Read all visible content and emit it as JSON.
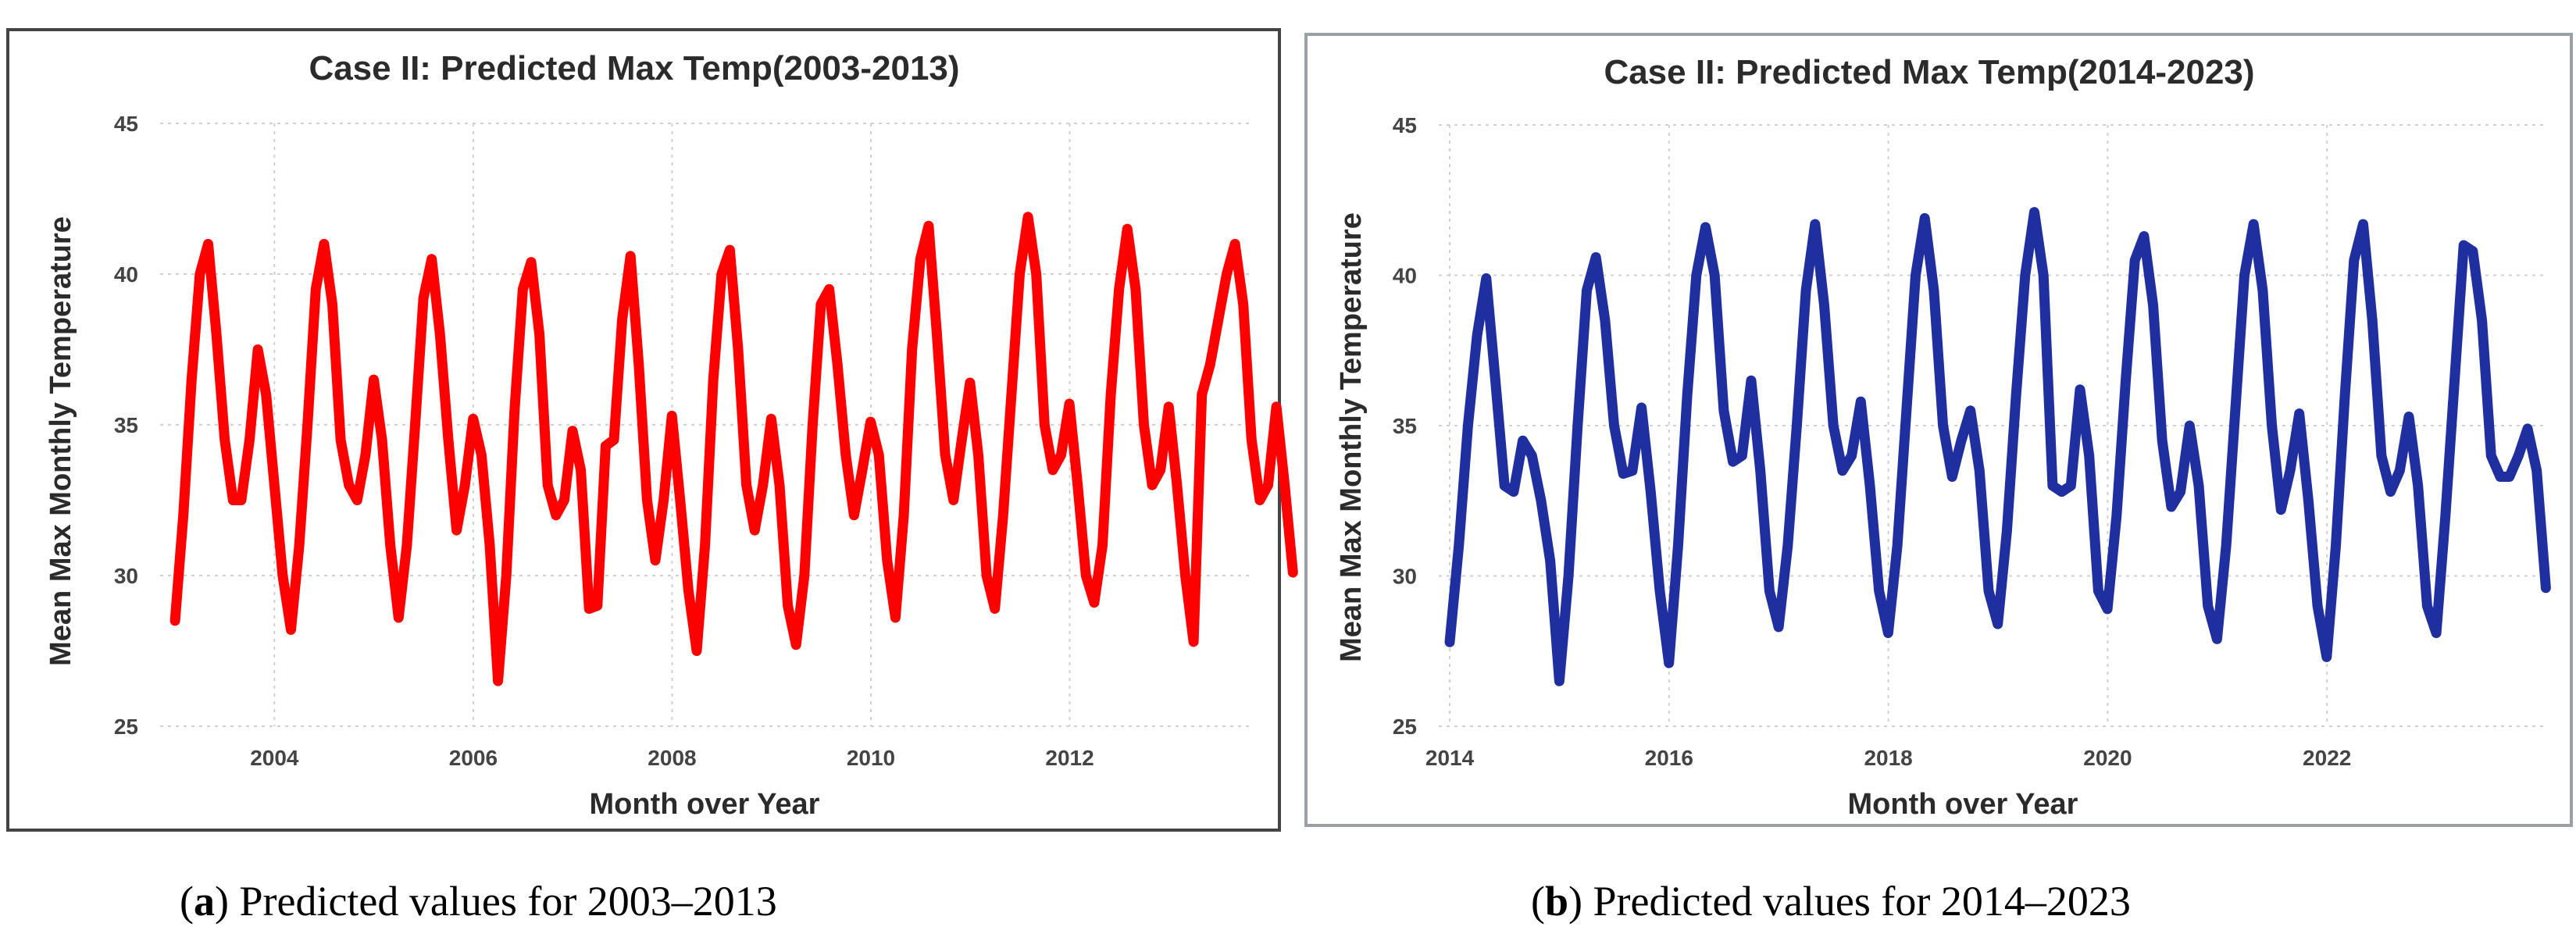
{
  "panels": [
    {
      "caption_tag": "a",
      "caption_text": " Predicted values for 2003–2013",
      "line_color": "#ff0000"
    },
    {
      "caption_tag": "b",
      "caption_text": " Predicted values for 2014–2023",
      "line_color": "#1f2fa0"
    }
  ],
  "chart_data": [
    {
      "type": "line",
      "title": "Case II: Predicted Max Temp(2003-2013)",
      "xlabel": "Month over Year",
      "ylabel": "Mean Max Monthly Temperature",
      "ylim": [
        25,
        45
      ],
      "xlim": [
        2002.85,
        2013.85
      ],
      "yticks": [
        25,
        30,
        35,
        40,
        45
      ],
      "xticks": [
        2004,
        2006,
        2008,
        2010,
        2012
      ],
      "grid": true,
      "series": [
        {
          "name": "Predicted Max Temp",
          "x_start": 2003.0,
          "x_step": 0.0833,
          "values": [
            28.5,
            32,
            36.5,
            40.0,
            41.0,
            38,
            34.5,
            32.5,
            32.5,
            34.5,
            37.5,
            36,
            33,
            30,
            28.2,
            31,
            35,
            39.5,
            41.0,
            39,
            34.5,
            33.0,
            32.5,
            34,
            36.5,
            34.5,
            31,
            28.6,
            31,
            35,
            39.2,
            40.5,
            38,
            34.5,
            31.5,
            33,
            35.2,
            34,
            31,
            26.5,
            30,
            35.5,
            39.5,
            40.4,
            38,
            33,
            32.0,
            32.5,
            34.8,
            33.5,
            28.9,
            29,
            34.3,
            34.5,
            38.5,
            40.6,
            37,
            32.5,
            30.5,
            32.5,
            35.3,
            32.5,
            29.5,
            27.5,
            31,
            36.5,
            40.0,
            40.8,
            37.5,
            33,
            31.5,
            33,
            35.2,
            33,
            29,
            27.7,
            30,
            35,
            39.0,
            39.5,
            37,
            34,
            32,
            33.5,
            35.1,
            34,
            30.5,
            28.6,
            32,
            37.5,
            40.5,
            41.6,
            38,
            34,
            32.5,
            34.5,
            36.4,
            34,
            30,
            28.9,
            32,
            36,
            40.0,
            41.9,
            40,
            35,
            33.5,
            34,
            35.7,
            33,
            30,
            29.1,
            31,
            36,
            39.5,
            41.5,
            39.5,
            35,
            33,
            33.5,
            35.6,
            33,
            30,
            27.8,
            36,
            37,
            38.5,
            40,
            41.0,
            39,
            34.5,
            32.5,
            33,
            35.6,
            33,
            30.1
          ]
        }
      ]
    },
    {
      "type": "line",
      "title": "Case II: Predicted Max Temp(2014-2023)",
      "xlabel": "Month over Year",
      "ylabel": "Mean Max Monthly Temperature",
      "ylim": [
        25,
        45
      ],
      "xlim": [
        2013.9,
        2024.0
      ],
      "yticks": [
        25,
        30,
        35,
        40,
        45
      ],
      "xticks": [
        2014,
        2016,
        2018,
        2020,
        2022
      ],
      "grid": true,
      "series": [
        {
          "name": "Predicted Max Temp",
          "x_start": 2014.0,
          "x_step": 0.0833,
          "values": [
            27.8,
            31,
            35,
            38,
            39.9,
            36.5,
            33,
            32.8,
            34.5,
            34.0,
            32.5,
            30.5,
            26.5,
            30,
            35,
            39.5,
            40.6,
            38.5,
            35,
            33.4,
            33.5,
            35.6,
            32.8,
            29.5,
            27.1,
            31,
            36,
            40,
            41.6,
            40,
            35.5,
            33.8,
            34,
            36.5,
            33.5,
            29.5,
            28.3,
            31,
            35,
            39.5,
            41.7,
            39,
            35,
            33.5,
            34,
            35.8,
            33,
            29.5,
            28.1,
            31,
            35.5,
            40,
            41.9,
            39.5,
            35,
            33.3,
            34.5,
            35.5,
            33.5,
            29.5,
            28.4,
            31.5,
            36,
            40,
            42.1,
            40,
            33,
            32.8,
            33,
            36.2,
            34,
            29.5,
            28.9,
            32,
            36.5,
            40.5,
            41.3,
            39,
            34.5,
            32.3,
            32.8,
            35.0,
            33,
            29.0,
            27.9,
            31,
            35.5,
            40,
            41.7,
            39.5,
            35,
            32.2,
            33.5,
            35.4,
            32.5,
            29.0,
            27.3,
            31,
            36,
            40.5,
            41.7,
            38.5,
            34,
            32.8,
            33.5,
            35.3,
            33,
            29.0,
            28.1,
            32,
            36.5,
            41.0,
            40.8,
            38.5,
            34,
            33.3,
            33.3,
            34.0,
            34.9,
            33.5,
            29.6
          ]
        }
      ]
    }
  ]
}
